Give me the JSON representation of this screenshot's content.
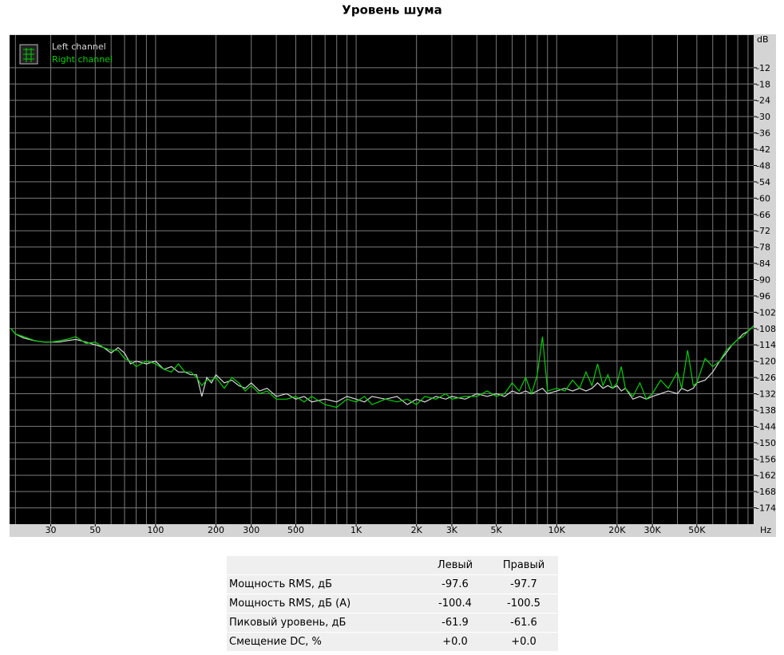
{
  "chart_data": {
    "type": "line",
    "title": "Уровень шума",
    "xscale": "log",
    "xlabel": "Hz",
    "ylabel": "dB",
    "legend": "upper left",
    "grid": true,
    "xlim": [
      18.7,
      96000
    ],
    "ylim": [
      -180,
      0
    ],
    "xticks": [
      30,
      50,
      100,
      200,
      300,
      500,
      {
        "value": 1000,
        "label": "1K"
      },
      {
        "value": 2000,
        "label": "2K"
      },
      {
        "value": 3000,
        "label": "3K"
      },
      {
        "value": 5000,
        "label": "5K"
      },
      {
        "value": 10000,
        "label": "10K"
      },
      {
        "value": 20000,
        "label": "20K"
      },
      {
        "value": 30000,
        "label": "30K"
      },
      {
        "value": 50000,
        "label": "50K"
      }
    ],
    "xgrid": [
      20,
      30,
      40,
      50,
      60,
      70,
      80,
      90,
      100,
      200,
      300,
      400,
      500,
      600,
      700,
      800,
      900,
      1000,
      2000,
      3000,
      4000,
      5000,
      6000,
      7000,
      8000,
      9000,
      10000,
      20000,
      30000,
      40000,
      50000,
      60000,
      70000,
      80000,
      90000
    ],
    "yticks": [
      -12,
      -18,
      -24,
      -30,
      -36,
      -42,
      -48,
      -54,
      -60,
      -66,
      -72,
      -78,
      -84,
      -90,
      -96,
      -102,
      -108,
      -114,
      -120,
      -126,
      -132,
      -138,
      -144,
      -150,
      -156,
      -162,
      -168,
      -174
    ],
    "x": [
      19,
      20,
      22,
      25,
      28,
      30,
      33,
      36,
      40,
      45,
      50,
      55,
      60,
      65,
      70,
      75,
      80,
      90,
      100,
      110,
      120,
      130,
      140,
      150,
      160,
      170,
      180,
      190,
      200,
      220,
      240,
      260,
      280,
      300,
      330,
      360,
      400,
      450,
      500,
      550,
      600,
      700,
      800,
      900,
      1000,
      1100,
      1200,
      1400,
      1600,
      1800,
      2000,
      2200,
      2500,
      2800,
      3000,
      3500,
      4000,
      4500,
      5000,
      5500,
      6000,
      6500,
      7000,
      7500,
      8000,
      8500,
      9000,
      10000,
      11000,
      12000,
      13000,
      14000,
      15000,
      16000,
      17000,
      18000,
      19000,
      20000,
      21000,
      22000,
      24000,
      26000,
      28000,
      30000,
      33000,
      36000,
      40000,
      42000,
      45000,
      48000,
      50000,
      55000,
      60000,
      65000,
      70000,
      75000,
      80000,
      85000,
      90000,
      96000
    ],
    "series": [
      {
        "name": "Left channel",
        "color": "#d8d8d8",
        "values": [
          -108,
          -110,
          -111.5,
          -112.5,
          -113,
          -113,
          -113,
          -112.5,
          -112,
          -113,
          -114,
          -115,
          -117,
          -115,
          -117,
          -121,
          -120,
          -121,
          -120,
          -123,
          -122,
          -124,
          -124,
          -125,
          -125,
          -133,
          -126,
          -128,
          -125,
          -128,
          -127,
          -129,
          -130,
          -128,
          -131,
          -130,
          -133,
          -132,
          -134,
          -133,
          -135,
          -134,
          -135,
          -133,
          -134,
          -135,
          -133,
          -134,
          -133,
          -136,
          -134,
          -135,
          -133,
          -134,
          -133,
          -134,
          -132,
          -133,
          -132,
          -133,
          -131,
          -132,
          -131,
          -132,
          -131,
          -130,
          -132,
          -131,
          -130,
          -131,
          -130,
          -131,
          -130,
          -128,
          -130,
          -129,
          -130,
          -129,
          -131,
          -130,
          -134,
          -133,
          -134,
          -133,
          -132,
          -131,
          -132,
          -130,
          -131,
          -130,
          -128,
          -127,
          -124,
          -120,
          -117,
          -114,
          -112,
          -110,
          -109,
          -107
        ]
      },
      {
        "name": "Right channel",
        "color": "#00d000",
        "values": [
          -108,
          -110,
          -111,
          -112.5,
          -113,
          -113,
          -112.5,
          -112,
          -111,
          -113.5,
          -113,
          -115,
          -116,
          -116,
          -119,
          -120,
          -122,
          -120,
          -121,
          -123,
          -124,
          -121,
          -124,
          -124,
          -126,
          -129,
          -127,
          -127,
          -126,
          -130,
          -126,
          -128,
          -131,
          -129,
          -132,
          -131,
          -134,
          -134,
          -133,
          -135,
          -133,
          -136,
          -137,
          -134,
          -135,
          -133,
          -136,
          -134,
          -135,
          -134,
          -136,
          -133,
          -134,
          -132,
          -134,
          -133,
          -133,
          -131,
          -133,
          -132,
          -128,
          -131,
          -126,
          -132,
          -125,
          -111,
          -131,
          -130,
          -131,
          -127,
          -130,
          -124,
          -129,
          -121,
          -129,
          -125,
          -130,
          -128,
          -122,
          -130,
          -133,
          -128,
          -134,
          -132,
          -127,
          -130,
          -124,
          -130,
          -116,
          -129,
          -128,
          -119,
          -122,
          -120,
          -116,
          -114,
          -112,
          -111,
          -109,
          -107
        ]
      }
    ]
  },
  "table": {
    "header": [
      "Левый",
      "Правый"
    ],
    "rows": [
      [
        "Мощность RMS, дБ",
        "-97.6",
        "-97.7"
      ],
      [
        "Мощность RMS, дБ (A)",
        "-100.4",
        "-100.5"
      ],
      [
        "Пиковый уровень, дБ",
        "-61.9",
        "-61.6"
      ],
      [
        "Смещение DC, %",
        "+0.0",
        "+0.0"
      ]
    ]
  }
}
